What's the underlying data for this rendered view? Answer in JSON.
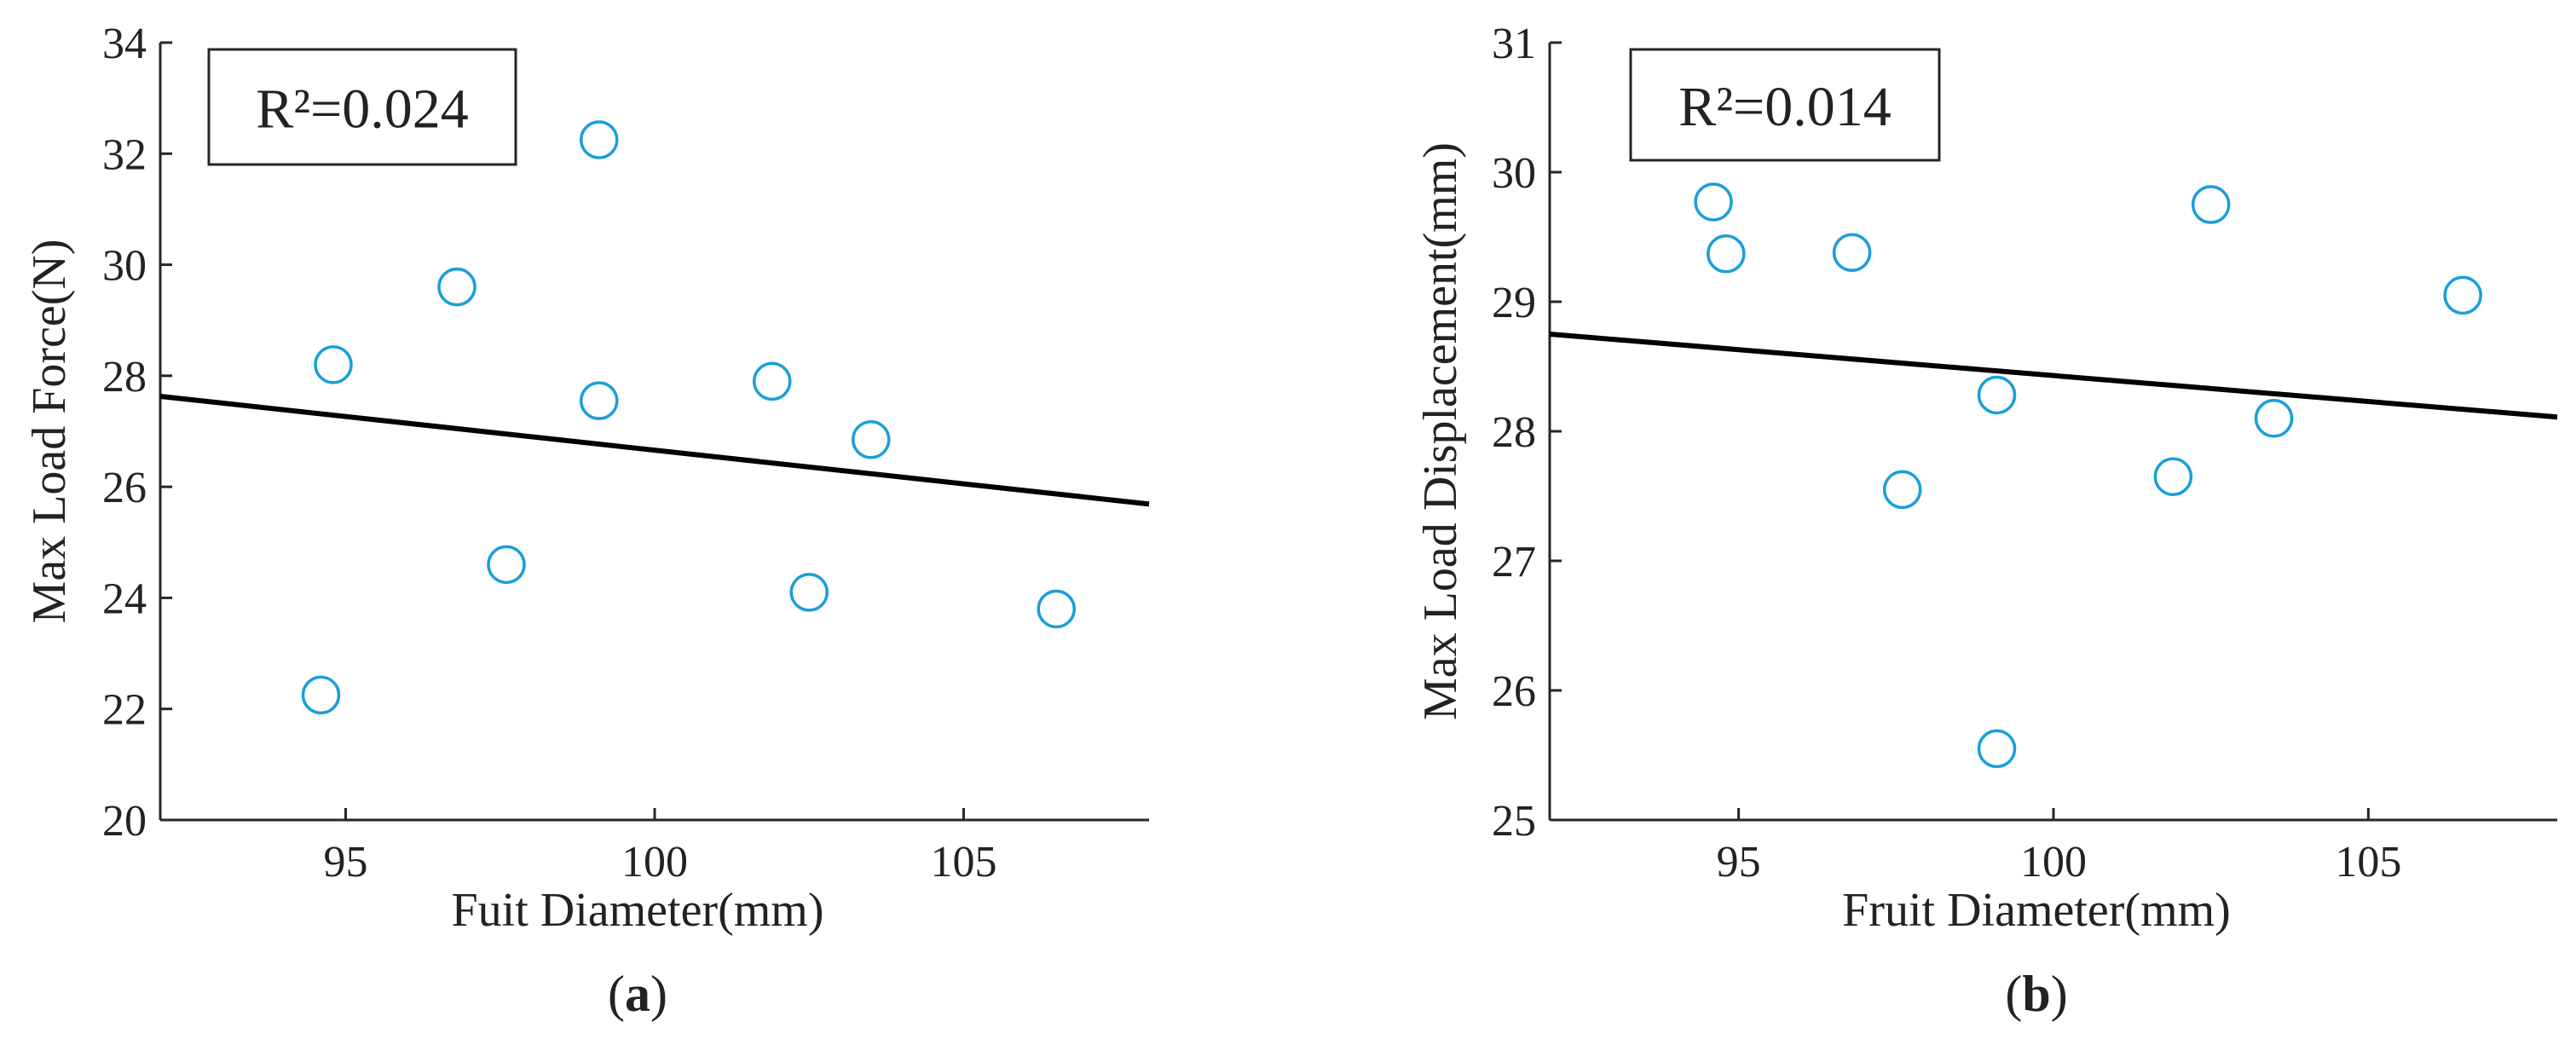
{
  "chart_data": [
    {
      "type": "scatter",
      "panel_label": "a",
      "annotation": "R²=0.024",
      "xlabel": "Fuit Diameter(mm)",
      "ylabel": "Max Load Force(N)",
      "xlim": [
        92,
        108
      ],
      "ylim": [
        20,
        34
      ],
      "xticks": [
        95,
        100,
        105
      ],
      "yticks": [
        20,
        22,
        24,
        26,
        28,
        30,
        32,
        34
      ],
      "points": [
        {
          "x": 94.6,
          "y": 22.25
        },
        {
          "x": 94.8,
          "y": 28.2
        },
        {
          "x": 96.8,
          "y": 29.6
        },
        {
          "x": 97.6,
          "y": 24.6
        },
        {
          "x": 99.1,
          "y": 32.25
        },
        {
          "x": 99.1,
          "y": 27.55
        },
        {
          "x": 101.9,
          "y": 27.9
        },
        {
          "x": 102.5,
          "y": 24.1
        },
        {
          "x": 103.5,
          "y": 26.85
        },
        {
          "x": 106.5,
          "y": 23.8
        }
      ],
      "fit_line": [
        {
          "x": 92,
          "y": 27.63
        },
        {
          "x": 108,
          "y": 25.69
        }
      ]
    },
    {
      "type": "scatter",
      "panel_label": "b",
      "annotation": "R²=0.014",
      "xlabel": "Fruit Diameter(mm)",
      "ylabel": "Max Load Displacement(mm)",
      "xlim": [
        92,
        108
      ],
      "ylim": [
        25,
        31
      ],
      "xticks": [
        95,
        100,
        105
      ],
      "yticks": [
        25,
        26,
        27,
        28,
        29,
        30,
        31
      ],
      "points": [
        {
          "x": 94.6,
          "y": 29.77
        },
        {
          "x": 94.8,
          "y": 29.37
        },
        {
          "x": 96.8,
          "y": 29.38
        },
        {
          "x": 97.6,
          "y": 27.55
        },
        {
          "x": 99.1,
          "y": 28.28
        },
        {
          "x": 99.1,
          "y": 25.55
        },
        {
          "x": 101.9,
          "y": 27.65
        },
        {
          "x": 102.5,
          "y": 29.75
        },
        {
          "x": 103.5,
          "y": 28.1
        },
        {
          "x": 106.5,
          "y": 29.05
        }
      ],
      "fit_line": [
        {
          "x": 92,
          "y": 28.75
        },
        {
          "x": 108,
          "y": 28.11
        }
      ]
    }
  ],
  "colors": {
    "marker": "#1a9fd9",
    "fit_line": "#000000",
    "axis": "#262626",
    "text": "#222222"
  }
}
